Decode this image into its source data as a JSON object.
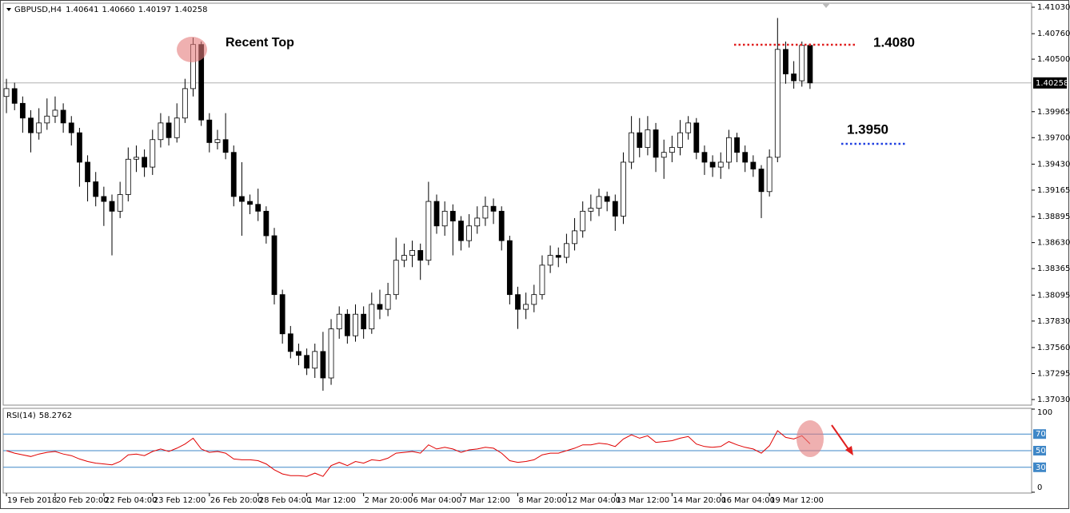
{
  "chart_data": [
    {
      "type": "candlestick",
      "title": "GBPUSD,H4",
      "header_labels": [
        "1.40641",
        "1.40660",
        "1.40197",
        "1.40258"
      ],
      "open": [
        1.4012,
        1.402,
        1.4005,
        1.399,
        1.3975,
        1.3985,
        1.3992,
        1.3998,
        1.3985,
        1.3975,
        1.3945,
        1.3925,
        1.391,
        1.3905,
        1.3895,
        1.3912,
        1.3948,
        1.395,
        1.394,
        1.3968,
        1.3985,
        1.397,
        1.399,
        1.402,
        1.4065,
        1.3988,
        1.3965,
        1.3968,
        1.3955,
        1.391,
        1.3905,
        1.3902,
        1.3895,
        1.387,
        1.381,
        1.377,
        1.3752,
        1.3748,
        1.3735,
        1.3752,
        1.3725,
        1.3775,
        1.379,
        1.3768,
        1.379,
        1.3775,
        1.38,
        1.3795,
        1.381,
        1.3845,
        1.385,
        1.3855,
        1.3845,
        1.3905,
        1.388,
        1.3895,
        1.3885,
        1.3865,
        1.388,
        1.3888,
        1.39,
        1.3895,
        1.3865,
        1.381,
        1.3795,
        1.38,
        1.381,
        1.384,
        1.385,
        1.3848,
        1.3862,
        1.3875,
        1.3895,
        1.3898,
        1.391,
        1.3905,
        1.389,
        1.3945,
        1.3975,
        1.396,
        1.3978,
        1.395,
        1.3955,
        1.396,
        1.3975,
        1.3985,
        1.3955,
        1.3945,
        1.394,
        1.3945,
        1.397,
        1.3955,
        1.3945,
        1.3938,
        1.3915,
        1.395,
        1.406,
        1.4035,
        1.4028,
        1.40641
      ],
      "high": [
        1.403,
        1.4026,
        1.4012,
        1.3998,
        1.4,
        1.401,
        1.4012,
        1.4005,
        1.3992,
        1.398,
        1.3952,
        1.3935,
        1.392,
        1.3912,
        1.3925,
        1.396,
        1.3962,
        1.3958,
        1.3978,
        1.3995,
        1.3992,
        1.4005,
        1.403,
        1.4072,
        1.4068,
        1.3995,
        1.3978,
        1.3995,
        1.3962,
        1.3945,
        1.3912,
        1.3918,
        1.39,
        1.3878,
        1.3815,
        1.3778,
        1.376,
        1.3755,
        1.376,
        1.3772,
        1.3785,
        1.3798,
        1.3795,
        1.38,
        1.3798,
        1.3812,
        1.3815,
        1.3822,
        1.3868,
        1.3862,
        1.3865,
        1.3862,
        1.3925,
        1.3912,
        1.3905,
        1.3902,
        1.389,
        1.3892,
        1.39,
        1.391,
        1.3908,
        1.39,
        1.387,
        1.3818,
        1.3812,
        1.382,
        1.385,
        1.386,
        1.3858,
        1.3872,
        1.3888,
        1.3905,
        1.3912,
        1.3918,
        1.3915,
        1.3912,
        1.3955,
        1.3992,
        1.399,
        1.3992,
        1.3985,
        1.3968,
        1.3972,
        1.3988,
        1.3992,
        1.399,
        1.3962,
        1.3952,
        1.3955,
        1.3978,
        1.3975,
        1.3962,
        1.3952,
        1.3942,
        1.3958,
        1.4092,
        1.4068,
        1.4048,
        1.4068,
        1.4066
      ],
      "low": [
        1.3995,
        1.3998,
        1.3975,
        1.3955,
        1.3968,
        1.3978,
        1.3985,
        1.3975,
        1.3962,
        1.392,
        1.3905,
        1.39,
        1.388,
        1.385,
        1.3888,
        1.3905,
        1.3935,
        1.393,
        1.3932,
        1.396,
        1.3962,
        1.3965,
        1.3985,
        1.4012,
        1.3982,
        1.3955,
        1.3958,
        1.3948,
        1.39,
        1.387,
        1.3892,
        1.3885,
        1.3862,
        1.38,
        1.376,
        1.3745,
        1.3738,
        1.3728,
        1.3725,
        1.3712,
        1.3718,
        1.3765,
        1.376,
        1.3762,
        1.3765,
        1.377,
        1.3785,
        1.3788,
        1.3805,
        1.3838,
        1.3838,
        1.3825,
        1.384,
        1.3872,
        1.387,
        1.385,
        1.3855,
        1.3858,
        1.3872,
        1.388,
        1.3882,
        1.3855,
        1.38,
        1.3775,
        1.3785,
        1.3792,
        1.3805,
        1.3832,
        1.3838,
        1.3842,
        1.3855,
        1.3868,
        1.3885,
        1.389,
        1.3895,
        1.3875,
        1.3882,
        1.3938,
        1.395,
        1.3952,
        1.3935,
        1.3928,
        1.3945,
        1.3952,
        1.3968,
        1.3948,
        1.3932,
        1.393,
        1.3928,
        1.3938,
        1.3945,
        1.3935,
        1.393,
        1.3888,
        1.391,
        1.3945,
        1.4025,
        1.402,
        1.4022,
        1.40197
      ],
      "close": [
        1.402,
        1.4005,
        1.399,
        1.3975,
        1.3985,
        1.3992,
        1.3998,
        1.3985,
        1.3975,
        1.3945,
        1.3925,
        1.391,
        1.3905,
        1.3895,
        1.3912,
        1.3948,
        1.395,
        1.394,
        1.3968,
        1.3985,
        1.397,
        1.399,
        1.402,
        1.4065,
        1.3988,
        1.3965,
        1.3968,
        1.3955,
        1.391,
        1.3905,
        1.3902,
        1.3895,
        1.387,
        1.381,
        1.377,
        1.3752,
        1.3748,
        1.3735,
        1.3752,
        1.3725,
        1.3775,
        1.379,
        1.3768,
        1.379,
        1.3775,
        1.38,
        1.3795,
        1.381,
        1.3845,
        1.385,
        1.3855,
        1.3845,
        1.3905,
        1.388,
        1.3895,
        1.3885,
        1.3865,
        1.388,
        1.3888,
        1.39,
        1.3895,
        1.3865,
        1.381,
        1.3795,
        1.38,
        1.381,
        1.384,
        1.385,
        1.3848,
        1.3862,
        1.3875,
        1.3895,
        1.3898,
        1.391,
        1.3905,
        1.389,
        1.3945,
        1.3975,
        1.396,
        1.3978,
        1.395,
        1.3955,
        1.396,
        1.3975,
        1.3985,
        1.3955,
        1.3945,
        1.394,
        1.3945,
        1.397,
        1.3955,
        1.3945,
        1.3938,
        1.3915,
        1.395,
        1.406,
        1.4035,
        1.4028,
        1.40641,
        1.40258
      ],
      "up_color": "#ffffff",
      "down_color": "#000000",
      "xlim": [
        -0.4,
        126.3
      ],
      "ylim": [
        1.36973,
        1.41071
      ],
      "xticks": [
        {
          "value": 0,
          "label": "19 Feb 2018"
        },
        {
          "value": 6,
          "label": "20 Feb 20:00"
        },
        {
          "value": 12,
          "label": "22 Feb 04:00"
        },
        {
          "value": 18,
          "label": "23 Feb 12:00"
        },
        {
          "value": 25,
          "label": "26 Feb 20:00"
        },
        {
          "value": 31,
          "label": "28 Feb 04:00"
        },
        {
          "value": 37,
          "label": "1 Mar 12:00"
        },
        {
          "value": 44,
          "label": "2 Mar 20:00"
        },
        {
          "value": 50,
          "label": "6 Mar 04:00"
        },
        {
          "value": 56,
          "label": "7 Mar 12:00"
        },
        {
          "value": 63,
          "label": "8 Mar 20:00"
        },
        {
          "value": 69,
          "label": "12 Mar 04:00"
        },
        {
          "value": 75,
          "label": "13 Mar 12:00"
        },
        {
          "value": 82,
          "label": "14 Mar 20:00"
        },
        {
          "value": 88,
          "label": "16 Mar 04:00"
        },
        {
          "value": 94,
          "label": "19 Mar 12:00"
        }
      ],
      "yticks": [
        {
          "value": 1.4103,
          "label": "1.41030"
        },
        {
          "value": 1.4076,
          "label": "1.40760"
        },
        {
          "value": 1.405,
          "label": "1.40500"
        },
        {
          "value": 1.39965,
          "label": "1.39965"
        },
        {
          "value": 1.397,
          "label": "1.39700"
        },
        {
          "value": 1.3943,
          "label": "1.39430"
        },
        {
          "value": 1.39165,
          "label": "1.39165"
        },
        {
          "value": 1.38895,
          "label": "1.38895"
        },
        {
          "value": 1.3863,
          "label": "1.38630"
        },
        {
          "value": 1.38365,
          "label": "1.38365"
        },
        {
          "value": 1.38095,
          "label": "1.38095"
        },
        {
          "value": 1.3783,
          "label": "1.37830"
        },
        {
          "value": 1.3756,
          "label": "1.37560"
        },
        {
          "value": 1.37295,
          "label": "1.37295"
        },
        {
          "value": 1.3703,
          "label": "1.37030"
        }
      ],
      "current_price": {
        "value": 1.40258,
        "label": "1.40258"
      },
      "annotations": {
        "recent_top": "Recent Top",
        "level_high": "1.4080",
        "level_low": "1.3950"
      }
    },
    {
      "type": "line",
      "title": "RSI(14)",
      "color": "#e00000",
      "level_color": "#3f87c7",
      "values": [
        50,
        47,
        45,
        43,
        46,
        48,
        49,
        46,
        44,
        40,
        37,
        35,
        34,
        33,
        37,
        45,
        46,
        44,
        49,
        52,
        49,
        53,
        58,
        65,
        52,
        48,
        49,
        47,
        40,
        39,
        39,
        38,
        34,
        27,
        22,
        20,
        20,
        19,
        23,
        19,
        32,
        36,
        32,
        37,
        35,
        39,
        38,
        41,
        47,
        48,
        49,
        47,
        57,
        52,
        54,
        52,
        48,
        51,
        52,
        54,
        53,
        47,
        38,
        36,
        37,
        39,
        45,
        47,
        47,
        50,
        53,
        57,
        57,
        59,
        58,
        55,
        64,
        69,
        65,
        68,
        60,
        61,
        62,
        65,
        67,
        58,
        55,
        54,
        55,
        61,
        57,
        54,
        52,
        47,
        56,
        74,
        66,
        64,
        68,
        58.2762
      ],
      "xlim": [
        -0.4,
        126.3
      ],
      "ylim": [
        0,
        100
      ],
      "yticks": [
        100,
        0
      ],
      "levels": [
        70,
        50,
        30
      ]
    }
  ]
}
